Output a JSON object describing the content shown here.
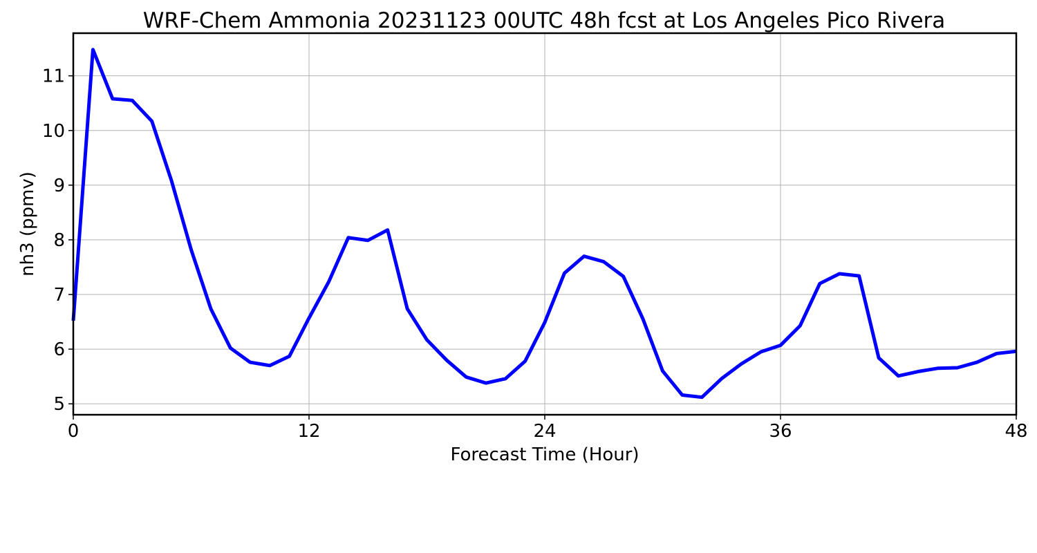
{
  "chart_data": {
    "type": "line",
    "title": "WRF-Chem Ammonia  20231123 00UTC 48h fcst at Los Angeles Pico Rivera",
    "xlabel": "Forecast Time (Hour)",
    "ylabel": "nh3  (ppmv)",
    "xlim": [
      0,
      48
    ],
    "ylim": [
      4.8,
      11.78
    ],
    "xticks": [
      0,
      12,
      24,
      36,
      48
    ],
    "yticks": [
      5,
      6,
      7,
      8,
      9,
      10,
      11
    ],
    "grid": true,
    "series": [
      {
        "color": "#0000ff",
        "x": [
          0,
          1,
          2,
          3,
          4,
          5,
          6,
          7,
          8,
          9,
          10,
          11,
          12,
          13,
          14,
          15,
          16,
          17,
          18,
          19,
          20,
          21,
          22,
          23,
          24,
          25,
          26,
          27,
          28,
          29,
          30,
          31,
          32,
          33,
          34,
          35,
          36,
          37,
          38,
          39,
          40,
          41,
          42,
          43,
          44,
          45,
          46,
          47,
          48
        ],
        "values": [
          6.52,
          11.48,
          10.58,
          10.55,
          10.17,
          9.08,
          7.82,
          6.74,
          6.02,
          5.76,
          5.7,
          5.87,
          6.57,
          7.23,
          8.04,
          7.99,
          8.18,
          6.74,
          6.17,
          5.8,
          5.49,
          5.38,
          5.46,
          5.78,
          6.49,
          7.39,
          7.7,
          7.6,
          7.33,
          6.55,
          5.6,
          5.16,
          5.12,
          5.46,
          5.73,
          5.95,
          6.07,
          6.43,
          7.2,
          7.38,
          7.34,
          5.84,
          5.51,
          5.59,
          5.65,
          5.66,
          5.76,
          5.92,
          5.96
        ]
      }
    ]
  }
}
